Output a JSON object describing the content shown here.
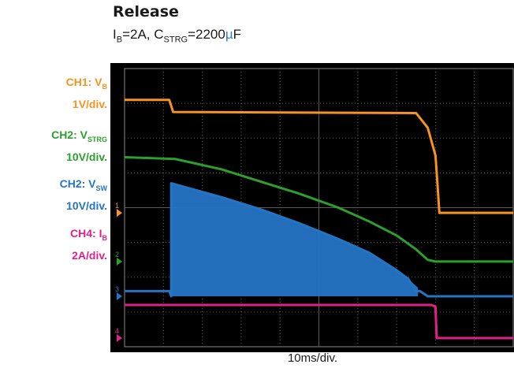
{
  "title": "Release",
  "subtitle": {
    "i_main": "I",
    "i_sub": "B",
    "i_rest": "=2A, C",
    "c_sub": "STRG",
    "c_rest": "=2200",
    "mu": "µ",
    "unit": "F"
  },
  "legend": [
    {
      "name_main": "CH1: V",
      "name_sub": "B",
      "scale": "1V/div.",
      "color": "#f7931e"
    },
    {
      "name_main": "CH2: V",
      "name_sub": "STRG",
      "scale": "10V/div.",
      "color": "#2ca02c"
    },
    {
      "name_main": "CH2: V",
      "name_sub": "SW",
      "scale": "10V/div.",
      "color": "#2574c4"
    },
    {
      "name_main": "CH4: I",
      "name_sub": "B",
      "scale": "2A/div.",
      "color": "#e0218a"
    }
  ],
  "chart_data": {
    "type": "line",
    "xlabel": "10ms/div.",
    "x_divisions": 10,
    "y_divisions": 8,
    "grid": true,
    "x_unit": "div",
    "y_unit": "div",
    "markers": [
      {
        "label": "1",
        "color": "#f7931e",
        "level": 3.85
      },
      {
        "label": "2",
        "color": "#2ca02c",
        "level": 2.45
      },
      {
        "label": "3",
        "color": "#2574c4",
        "level": 1.45
      },
      {
        "label": "4",
        "color": "#e0218a",
        "level": 0.25
      }
    ],
    "series": [
      {
        "name": "CH1: VB",
        "color": "#f7931e",
        "points": [
          [
            0,
            7.1
          ],
          [
            1.15,
            7.1
          ],
          [
            1.25,
            6.75
          ],
          [
            7.5,
            6.72
          ],
          [
            7.8,
            6.3
          ],
          [
            8.0,
            5.5
          ],
          [
            8.05,
            4.7
          ],
          [
            8.1,
            3.85
          ],
          [
            10,
            3.85
          ]
        ]
      },
      {
        "name": "CH2: VSTRG",
        "color": "#2ca02c",
        "points": [
          [
            0,
            5.45
          ],
          [
            1.3,
            5.4
          ],
          [
            2.5,
            5.1
          ],
          [
            3.5,
            4.75
          ],
          [
            4.5,
            4.4
          ],
          [
            5.5,
            4.0
          ],
          [
            6.3,
            3.6
          ],
          [
            7.0,
            3.2
          ],
          [
            7.5,
            2.8
          ],
          [
            7.8,
            2.5
          ],
          [
            8.0,
            2.45
          ],
          [
            10,
            2.45
          ]
        ]
      },
      {
        "name": "CH2: VSW",
        "color": "#2574c4",
        "points": [
          [
            0,
            1.6
          ],
          [
            1.15,
            1.6
          ],
          [
            1.2,
            1.45
          ],
          [
            1.2,
            4.7
          ],
          [
            2.5,
            4.3
          ],
          [
            3.5,
            3.95
          ],
          [
            4.5,
            3.55
          ],
          [
            5.5,
            3.1
          ],
          [
            6.3,
            2.7
          ],
          [
            7.0,
            2.2
          ],
          [
            7.3,
            1.95
          ],
          [
            7.5,
            1.6
          ],
          [
            7.6,
            1.6
          ],
          [
            7.8,
            1.45
          ],
          [
            10,
            1.45
          ]
        ]
      },
      {
        "name": "CH4: IB",
        "color": "#e0218a",
        "points": [
          [
            0,
            1.2
          ],
          [
            7.9,
            1.2
          ],
          [
            8.0,
            1.15
          ],
          [
            8.03,
            0.25
          ],
          [
            10,
            0.25
          ]
        ]
      }
    ],
    "filled_band": {
      "series": "CH2: VSW",
      "from": 1.2,
      "to": 7.55,
      "base": 1.45,
      "envelope": [
        [
          1.2,
          4.7
        ],
        [
          2.5,
          4.3
        ],
        [
          3.5,
          3.95
        ],
        [
          4.5,
          3.55
        ],
        [
          5.5,
          3.1
        ],
        [
          6.3,
          2.7
        ],
        [
          7.0,
          2.2
        ],
        [
          7.3,
          1.95
        ],
        [
          7.55,
          1.7
        ]
      ]
    }
  }
}
